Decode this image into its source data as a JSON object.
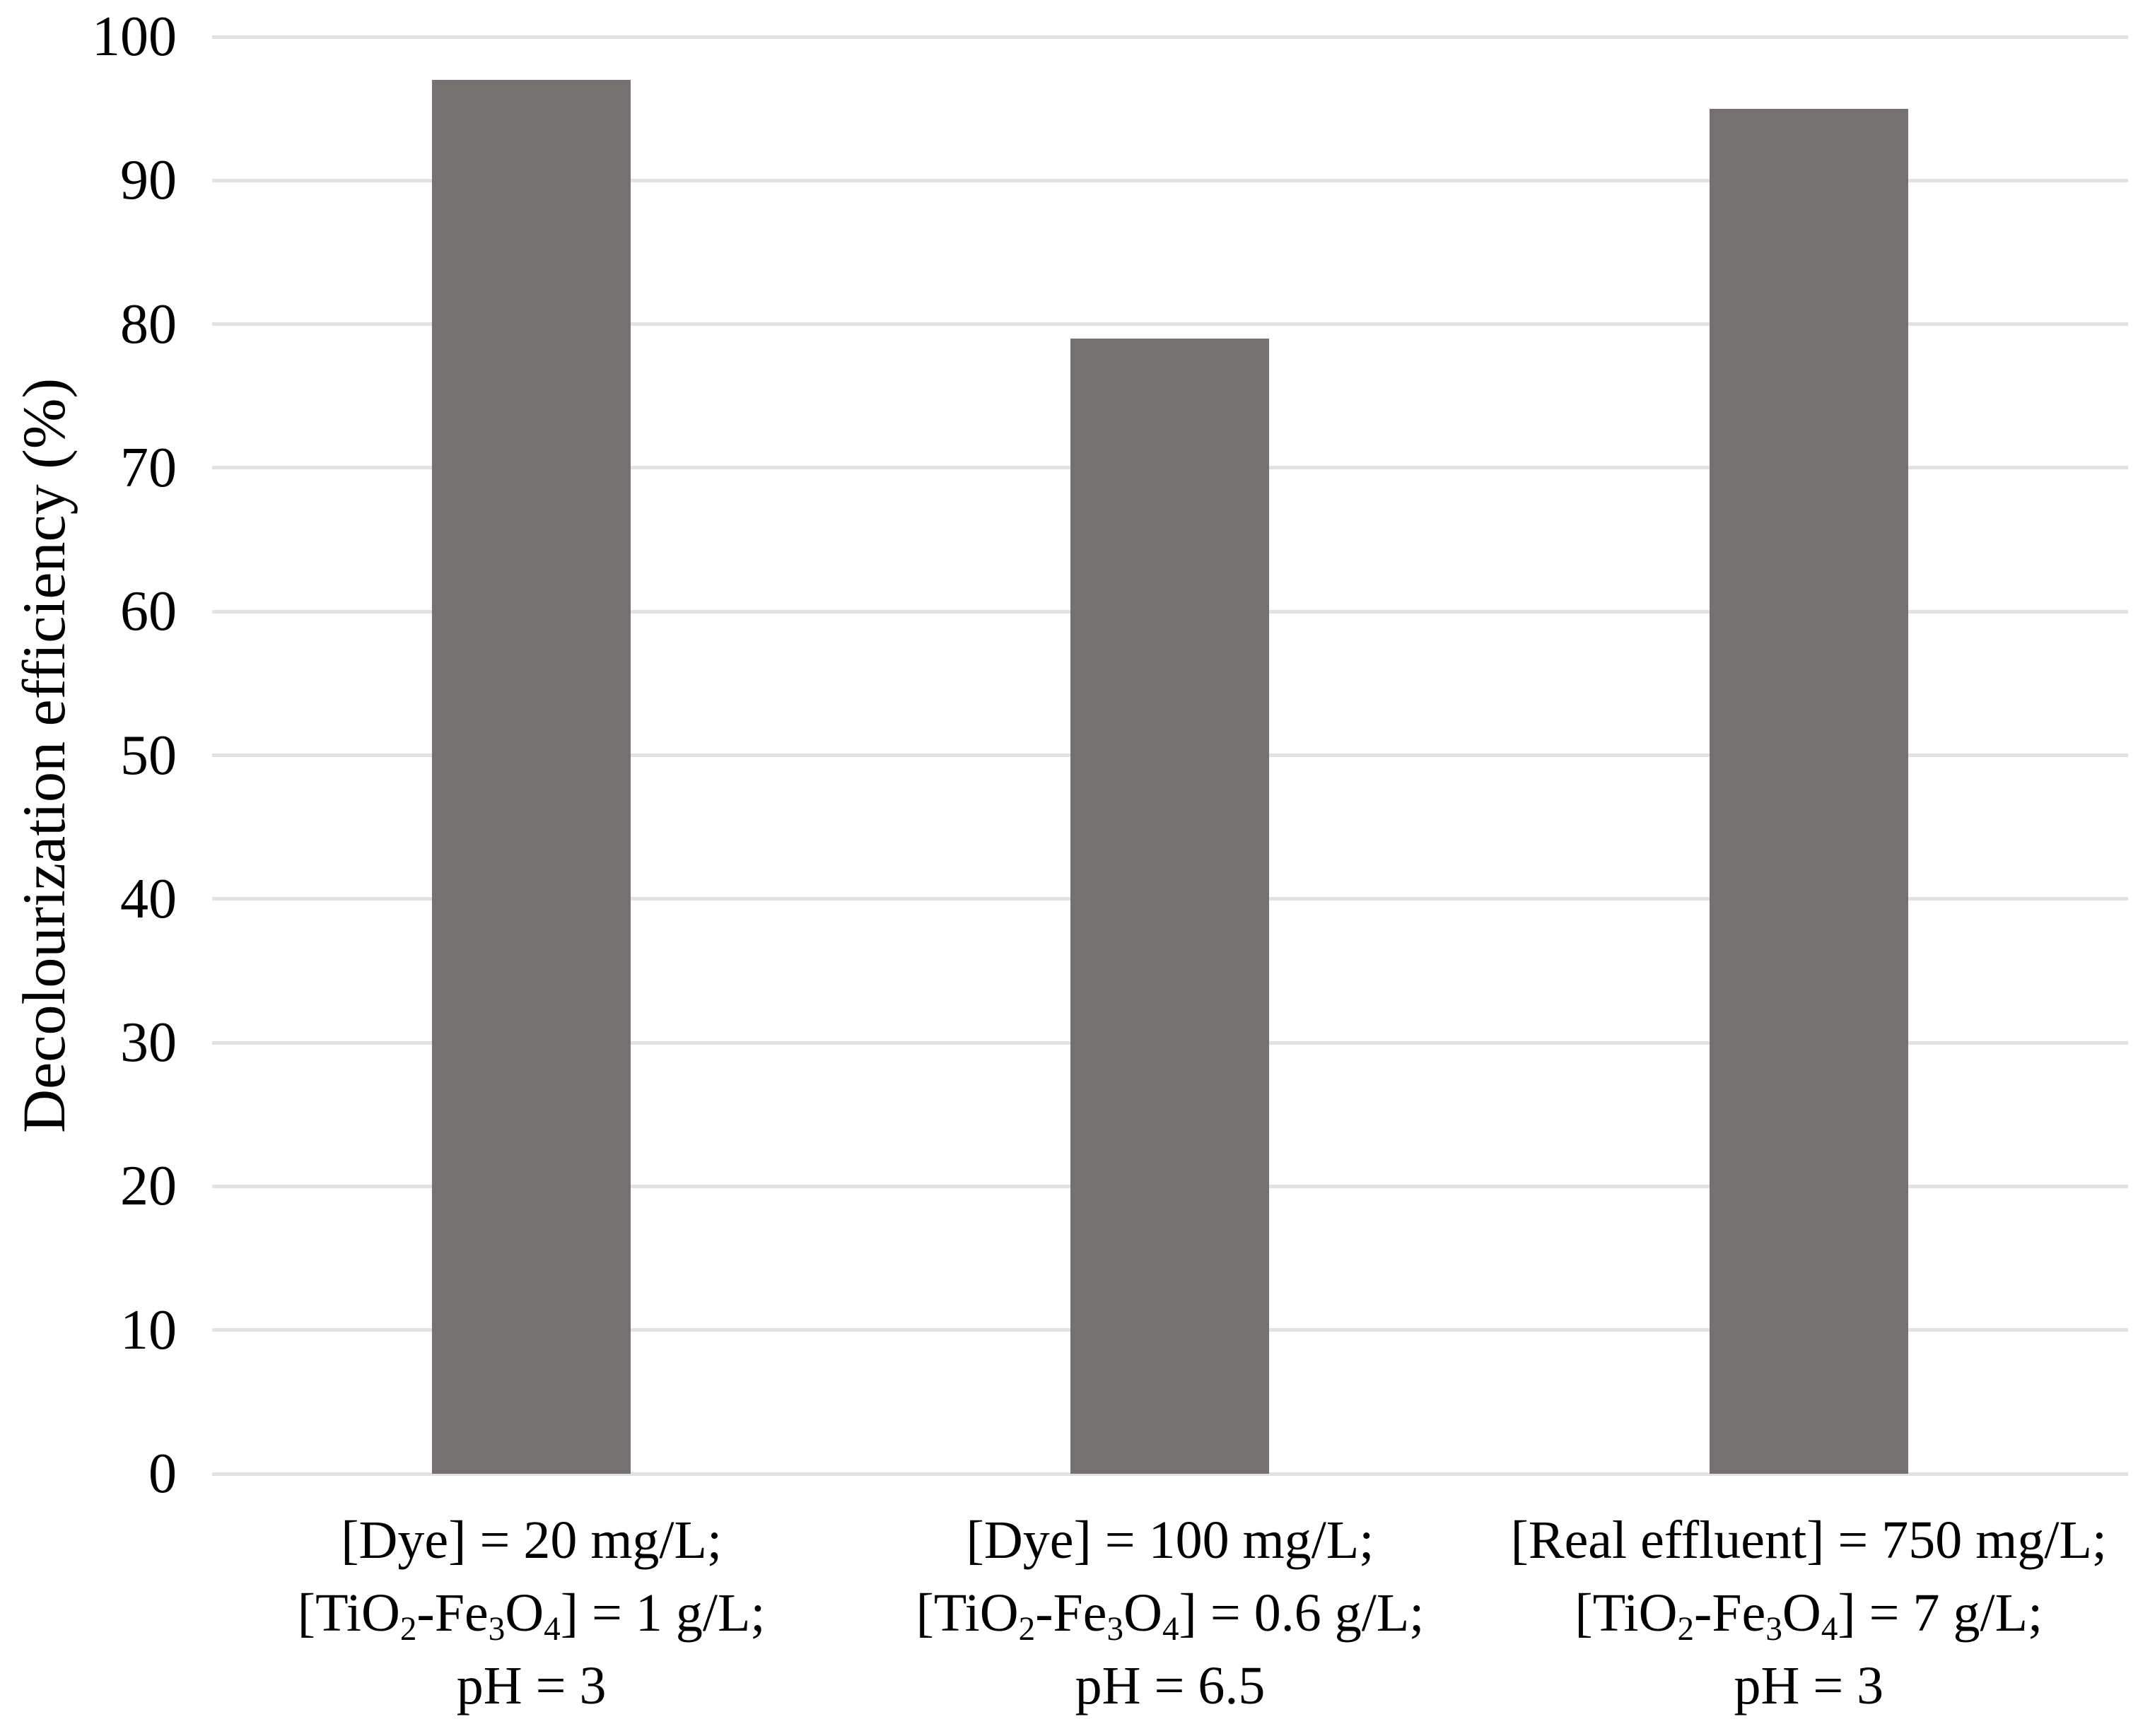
{
  "chart_data": {
    "type": "bar",
    "title": "",
    "xlabel": "",
    "ylabel": "Decolourization efficiency (%)",
    "ylim": [
      0,
      100
    ],
    "yticks": [
      0,
      10,
      20,
      30,
      40,
      50,
      60,
      70,
      80,
      90,
      100
    ],
    "grid": "horizontal",
    "legend": "none",
    "bar_color": "#767171",
    "gridline_color": "#E2E2E2",
    "text_color": "#000000",
    "background_color": "#FFFFFF",
    "values": [
      97,
      79,
      95
    ],
    "categories": [
      {
        "plain_text": "[Dye] = 20 mg/L; [TiO2-Fe3O4] = 1 g/L; pH = 3",
        "lines": [
          [
            {
              "t": "[Dye] = 20 mg/L;"
            }
          ],
          [
            {
              "t": "[TiO"
            },
            {
              "sub": "2"
            },
            {
              "t": "-Fe"
            },
            {
              "sub": "3"
            },
            {
              "t": "O"
            },
            {
              "sub": "4"
            },
            {
              "t": "] = 1 g/L;"
            }
          ],
          [
            {
              "t": "pH = 3"
            }
          ]
        ]
      },
      {
        "plain_text": "[Dye] = 100 mg/L; [TiO2-Fe3O4] = 0.6 g/L; pH = 6.5",
        "lines": [
          [
            {
              "t": "[Dye] = 100 mg/L;"
            }
          ],
          [
            {
              "t": "[TiO"
            },
            {
              "sub": "2"
            },
            {
              "t": "-Fe"
            },
            {
              "sub": "3"
            },
            {
              "t": "O"
            },
            {
              "sub": "4"
            },
            {
              "t": "] = 0.6 g/L;"
            }
          ],
          [
            {
              "t": "pH = 6.5"
            }
          ]
        ]
      },
      {
        "plain_text": "[Real effluent] = 750 mg/L; [TiO2-Fe3O4] = 7 g/L; pH = 3",
        "lines": [
          [
            {
              "t": "[Real effluent] = 750 mg/L;"
            }
          ],
          [
            {
              "t": "[TiO"
            },
            {
              "sub": "2"
            },
            {
              "t": "-Fe"
            },
            {
              "sub": "3"
            },
            {
              "t": "O"
            },
            {
              "sub": "4"
            },
            {
              "t": "] = 7 g/L;"
            }
          ],
          [
            {
              "t": "pH = 3"
            }
          ]
        ]
      }
    ]
  }
}
